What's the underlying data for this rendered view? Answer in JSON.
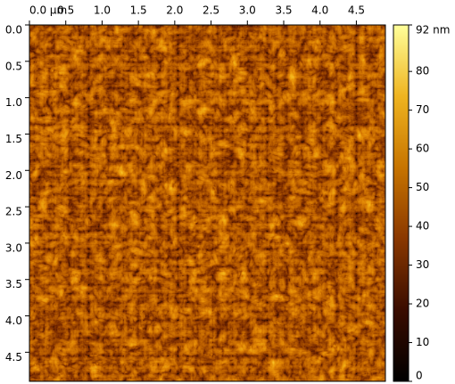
{
  "chart_data": {
    "type": "image",
    "xlim": [
      0,
      4.9
    ],
    "xticks": [
      {
        "value": 0,
        "label": "0.0 μm"
      },
      0.5,
      {
        "value": 1,
        "label": "1.0"
      },
      1.5,
      {
        "value": 2,
        "label": "2.0"
      },
      2.5,
      {
        "value": 3,
        "label": "3.0"
      },
      3.5,
      {
        "value": 4,
        "label": "4.0"
      },
      4.5
    ],
    "ylim": [
      0,
      4.9
    ],
    "yticks": [
      {
        "value": 0,
        "label": "0.0"
      },
      0.5,
      {
        "value": 1,
        "label": "1.0"
      },
      1.5,
      {
        "value": 2,
        "label": "2.0"
      },
      2.5,
      {
        "value": 3,
        "label": "3.0"
      },
      3.5,
      {
        "value": 4,
        "label": "4.0"
      },
      4.5
    ],
    "clim": [
      0,
      92
    ],
    "cticks": [
      {
        "value": 92,
        "label": "92 nm"
      },
      80,
      70,
      60,
      50,
      40,
      30,
      20,
      10,
      0
    ]
  }
}
